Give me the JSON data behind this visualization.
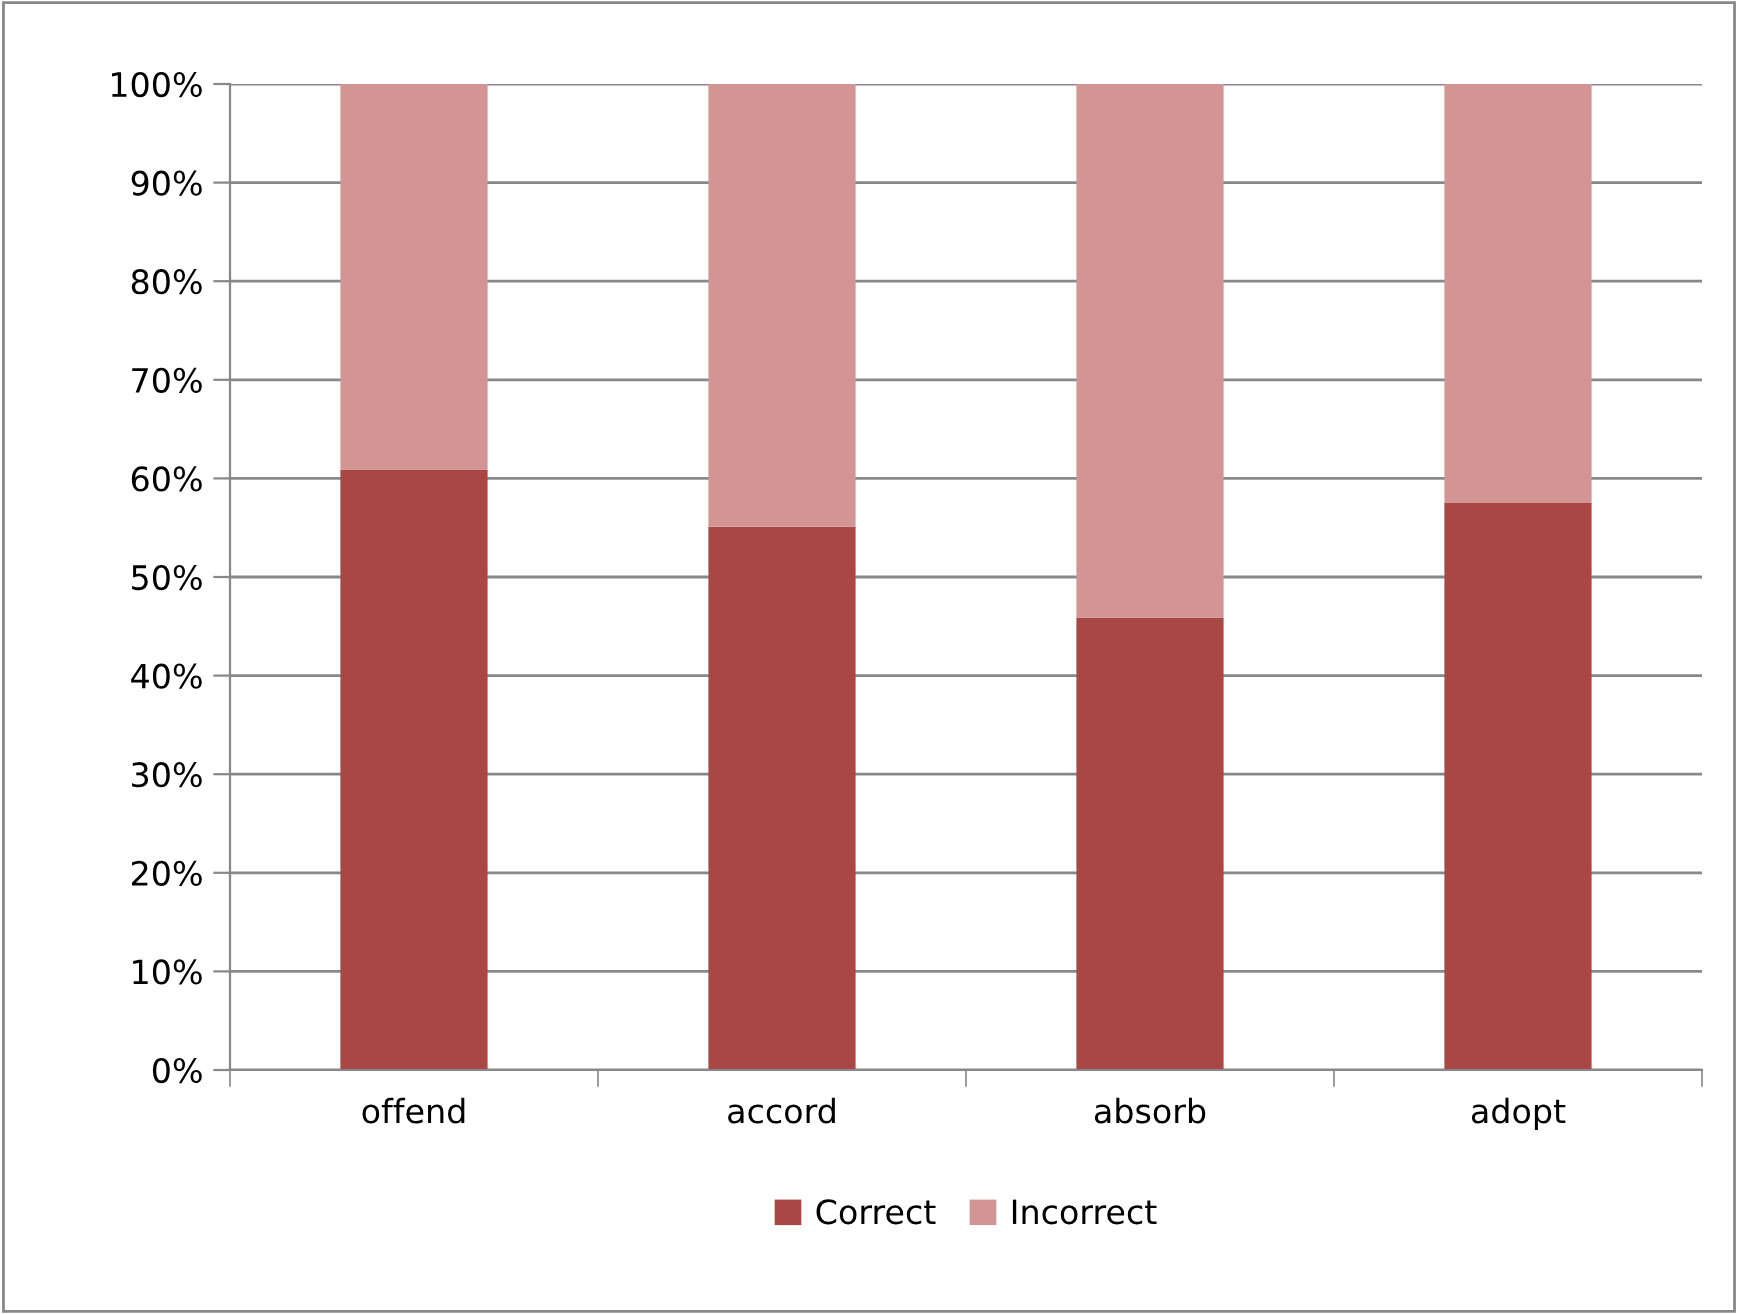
{
  "chart_data": {
    "type": "bar",
    "stacked": true,
    "categories": [
      "offend",
      "accord",
      "absorb",
      "adopt"
    ],
    "series": [
      {
        "name": "Correct",
        "color": "#a94744",
        "values": [
          60.9,
          55.1,
          45.9,
          57.5
        ]
      },
      {
        "name": "Incorrect",
        "color": "#d39494",
        "values": [
          39.1,
          44.9,
          54.1,
          42.5
        ]
      }
    ],
    "ylim": [
      0,
      100
    ],
    "yticks": [
      {
        "value": 0,
        "label": "0%"
      },
      {
        "value": 10,
        "label": "10%"
      },
      {
        "value": 20,
        "label": "20%"
      },
      {
        "value": 30,
        "label": "30%"
      },
      {
        "value": 40,
        "label": "40%"
      },
      {
        "value": 50,
        "label": "50%"
      },
      {
        "value": 60,
        "label": "60%"
      },
      {
        "value": 70,
        "label": "70%"
      },
      {
        "value": 80,
        "label": "80%"
      },
      {
        "value": 90,
        "label": "90%"
      },
      {
        "value": 100,
        "label": "100%"
      }
    ],
    "grid": "y",
    "legend": "bottom"
  }
}
